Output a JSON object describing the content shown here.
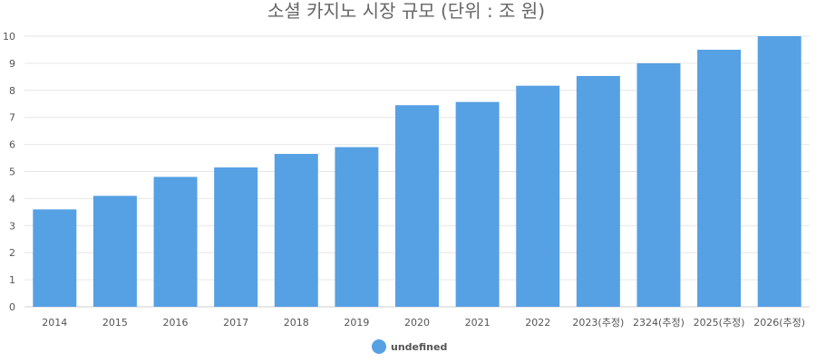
{
  "chart_data": {
    "type": "bar",
    "title": "소셜 카지노 시장 규모 (단위 : 조 원)",
    "xlabel": "",
    "ylabel": "",
    "categories": [
      "2014",
      "2015",
      "2016",
      "2017",
      "2018",
      "2019",
      "2020",
      "2021",
      "2022",
      "2023(추정)",
      "2324(추정)",
      "2025(추정)",
      "2026(추정)"
    ],
    "series": [
      {
        "name": "undefined",
        "color": "#56a0e4",
        "values": [
          3.6,
          4.1,
          4.8,
          5.15,
          5.65,
          5.9,
          7.45,
          7.57,
          8.17,
          8.53,
          9.0,
          9.5,
          10.0
        ]
      }
    ],
    "ylim": [
      0,
      10
    ],
    "yticks": [
      0,
      1,
      2,
      3,
      4,
      5,
      6,
      7,
      8,
      9,
      10
    ],
    "grid": true,
    "legend": "bottom-center"
  }
}
